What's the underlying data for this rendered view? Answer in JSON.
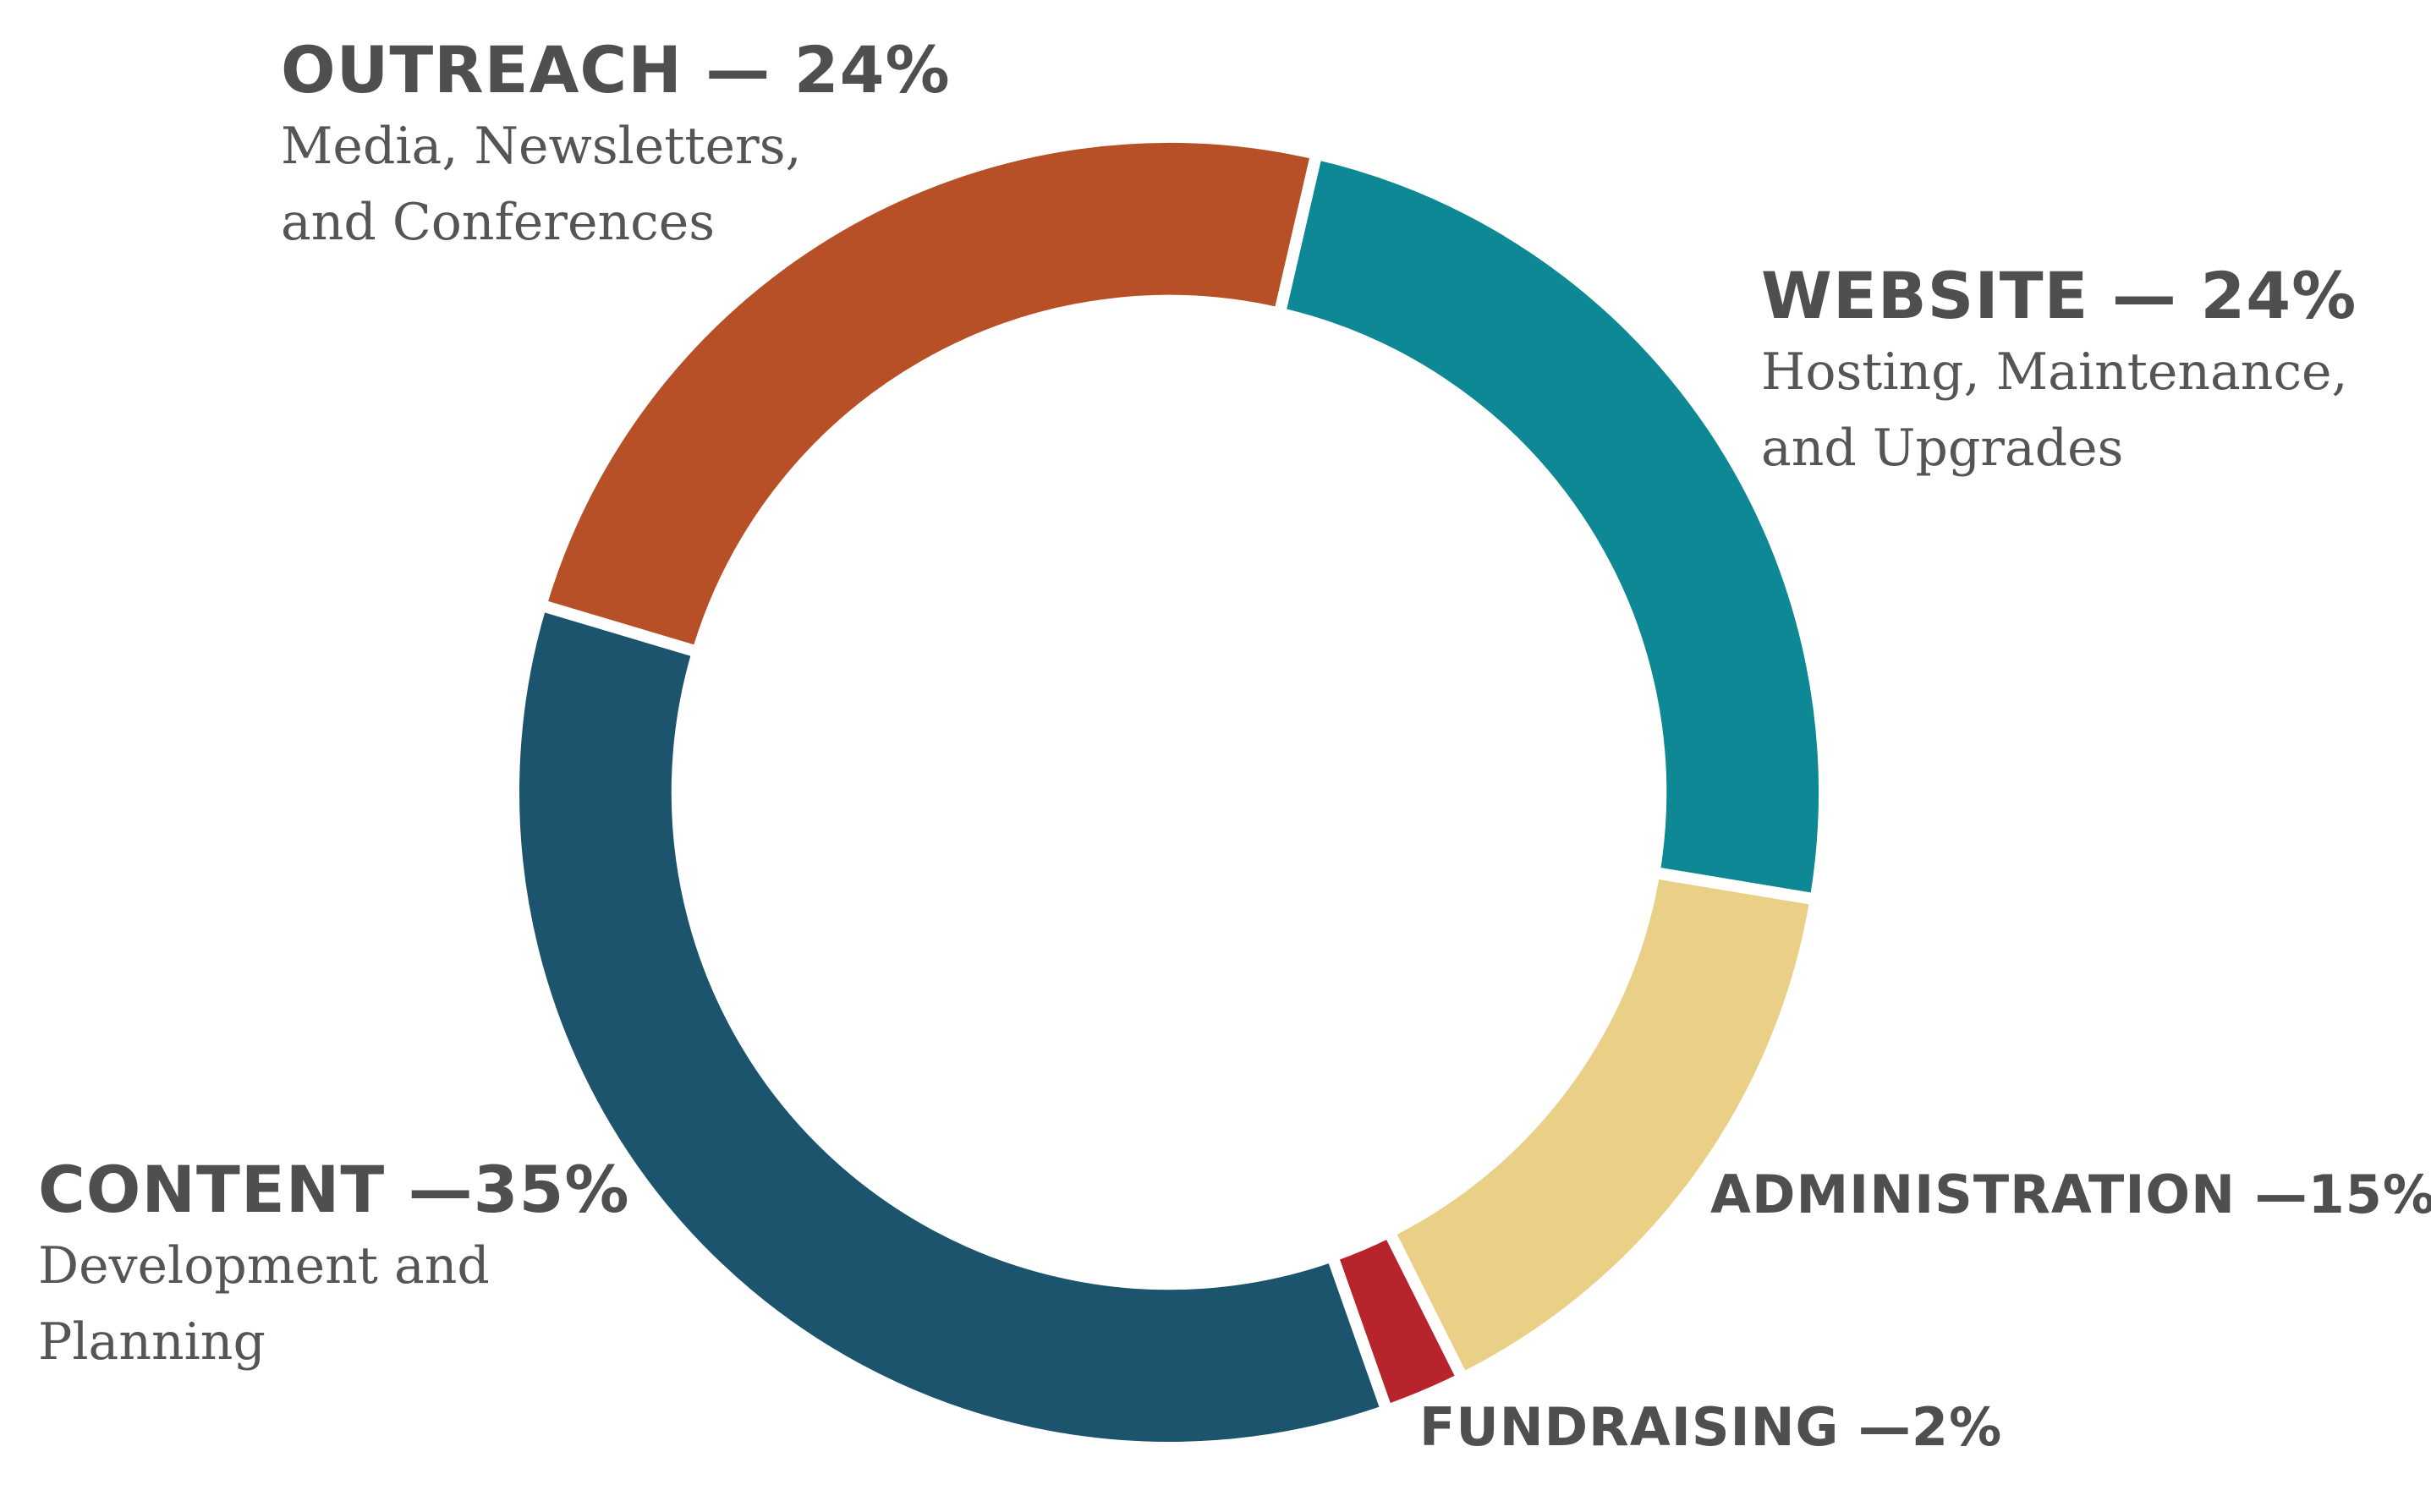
{
  "chart_data": {
    "type": "pie",
    "title": "",
    "start_angle_deg": 13,
    "direction": "clockwise",
    "inner_radius_ratio": 0.75,
    "slices": [
      {
        "name": "WEBSITE",
        "percent_label": "24%",
        "value": 24,
        "color": "#0e8894",
        "description": [
          "Hosting, Maintenance,",
          "and Upgrades"
        ]
      },
      {
        "name": "ADMINISTRATION",
        "percent_label": "15%",
        "value": 15,
        "color": "#ead087",
        "description": []
      },
      {
        "name": "FUNDRAISING",
        "percent_label": "2%",
        "value": 2,
        "color": "#b7242c",
        "description": []
      },
      {
        "name": "CONTENT",
        "percent_label": "35%",
        "value": 35,
        "color": "#1c546d",
        "description": [
          "Development and",
          "Planning"
        ]
      },
      {
        "name": "OUTREACH",
        "percent_label": "24%",
        "value": 24,
        "color": "#b75027",
        "description": [
          "Media, Newsletters,",
          "and Conferences"
        ]
      }
    ]
  },
  "labels": {
    "outreach": {
      "title": "OUTREACH — 24%",
      "desc": [
        "Media, Newsletters,",
        "and Conferences"
      ]
    },
    "website": {
      "title": "WEBSITE — 24%",
      "desc": [
        "Hosting, Maintenance,",
        "and Upgrades"
      ]
    },
    "content": {
      "title": "CONTENT —35%",
      "desc": [
        "Development and",
        "Planning"
      ]
    },
    "administration": {
      "title": "ADMINISTRATION —15%"
    },
    "fundraising": {
      "title": "FUNDRAISING —2%"
    }
  }
}
